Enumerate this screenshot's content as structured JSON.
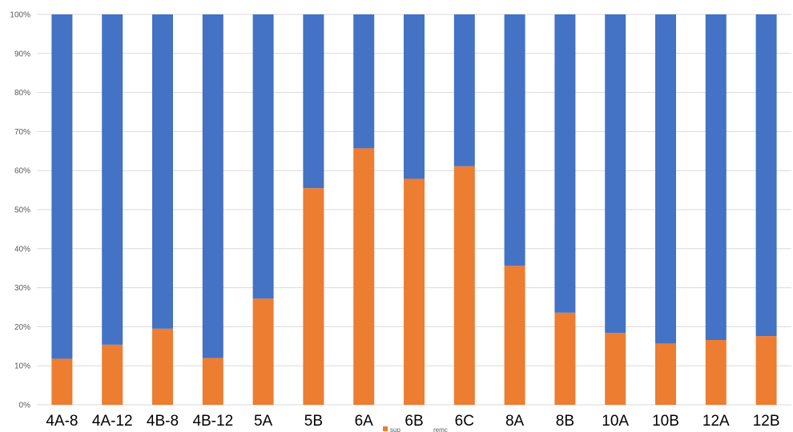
{
  "chart_data": {
    "type": "bar",
    "stacked": "percent",
    "categories": [
      "4A-8",
      "4A-12",
      "4B-8",
      "4B-12",
      "5A",
      "5B",
      "6A",
      "6B",
      "6C",
      "8A",
      "8B",
      "10A",
      "10B",
      "12A",
      "12B"
    ],
    "series": [
      {
        "name": "sup",
        "color": "#ED7D31",
        "values": [
          11.8,
          15.4,
          19.5,
          12.0,
          27.2,
          55.5,
          65.7,
          57.9,
          61.1,
          35.6,
          23.6,
          18.4,
          15.7,
          16.6,
          17.6
        ]
      },
      {
        "name": "remc",
        "color": "#4472C4",
        "values": [
          88.2,
          84.6,
          80.5,
          88.0,
          72.8,
          44.5,
          34.3,
          42.1,
          38.9,
          64.4,
          76.4,
          81.6,
          84.3,
          83.4,
          82.4
        ]
      }
    ],
    "y_ticks": [
      "0%",
      "10%",
      "20%",
      "30%",
      "40%",
      "50%",
      "60%",
      "70%",
      "80%",
      "90%",
      "100%"
    ],
    "ylim": [
      0,
      100
    ],
    "grid": true,
    "legend": "bottom-center"
  }
}
